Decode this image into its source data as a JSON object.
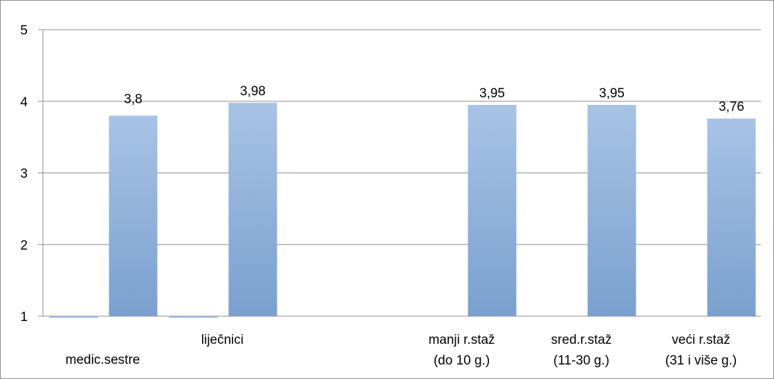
{
  "chart_data": {
    "type": "bar",
    "title": "",
    "xlabel": "",
    "ylabel": "",
    "ylim": [
      1,
      5
    ],
    "yticks": [
      "1",
      "2",
      "3",
      "4",
      "5"
    ],
    "grid": true,
    "bar_color": "#95b3d7",
    "categories": [
      {
        "lines": [
          "medic.sestre"
        ],
        "label_row": "low"
      },
      {
        "lines": [
          "liječnici"
        ],
        "label_row": "high"
      },
      {
        "lines": [
          ""
        ],
        "label_row": "high"
      },
      {
        "lines": [
          "manji r.staž",
          "(do 10 g.)"
        ],
        "label_row": "high"
      },
      {
        "lines": [
          "sred.r.staž",
          "(11-30 g.)"
        ],
        "label_row": "high"
      },
      {
        "lines": [
          "veći r.staž",
          "(31 i više g.)"
        ],
        "label_row": "high"
      }
    ],
    "series": [
      {
        "values": [
          1,
          1,
          null,
          null,
          null,
          null
        ]
      },
      {
        "values": [
          3.8,
          3.98,
          null,
          3.95,
          3.95,
          3.76
        ],
        "labels": [
          "3,8",
          "3,98",
          "",
          "3,95",
          "3,95",
          "3,76"
        ]
      }
    ]
  }
}
